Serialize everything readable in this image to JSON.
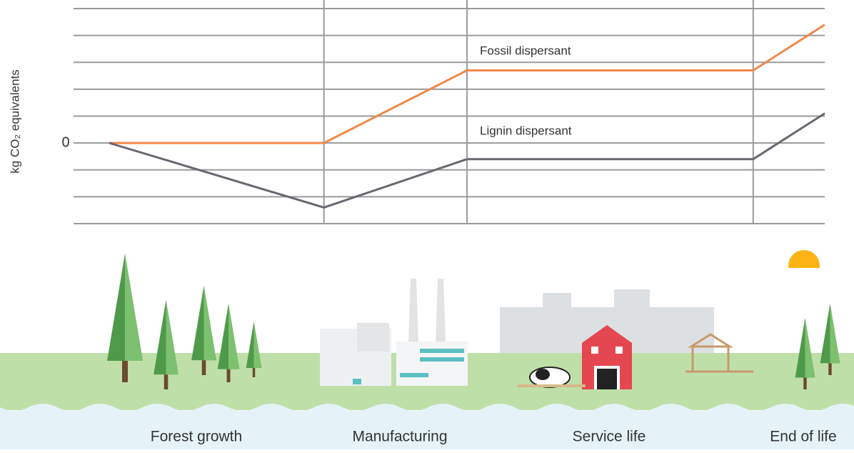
{
  "chart_data": {
    "type": "line",
    "y_label": "kg CO₂ equivalents",
    "x": [
      0,
      3,
      5,
      9,
      10
    ],
    "xlim": [
      -0.5,
      10
    ],
    "xgrid": [
      3,
      5,
      9
    ],
    "ylim": [
      -3,
      5
    ],
    "yticks": [
      0
    ],
    "ygrid": [
      -3,
      -2,
      -1,
      0,
      1,
      2,
      3,
      4,
      5
    ],
    "series": [
      {
        "name": "Fossil dispersant",
        "color": "#f0894a",
        "values": [
          0,
          0,
          2.7,
          2.7,
          4.4
        ]
      },
      {
        "name": "Lignin dispersant",
        "color": "#6b6670",
        "values": [
          0,
          -2.4,
          -0.6,
          -0.6,
          1.1
        ]
      }
    ],
    "stages": [
      "Forest growth",
      "Manufacturing",
      "Service life",
      "End of life"
    ]
  }
}
